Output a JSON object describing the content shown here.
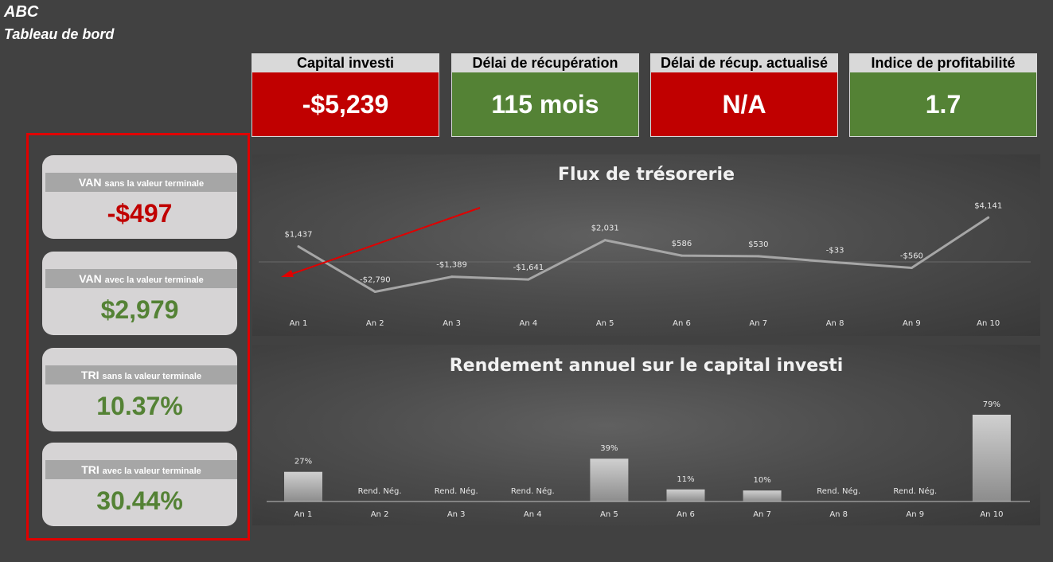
{
  "header": {
    "title": "ABC",
    "subtitle": "Tableau de bord"
  },
  "kpis": [
    {
      "label": "Capital investi",
      "value": "-$5,239",
      "color": "#c00000"
    },
    {
      "label": "Délai de récupération",
      "value": "115 mois",
      "color": "#548235"
    },
    {
      "label": "Délai de récup. actualisé",
      "value": "N/A",
      "color": "#c00000"
    },
    {
      "label": "Indice de profitabilité",
      "value": "1.7",
      "color": "#548235"
    }
  ],
  "metrics": [
    {
      "main": "VAN",
      "small": "sans la valeur terminale",
      "value": "-$497",
      "color": "#c00000"
    },
    {
      "main": "VAN",
      "small": "avec la valeur terminale",
      "value": "$2,979",
      "color": "#548235"
    },
    {
      "main": "TRI",
      "small": "sans la valeur terminale",
      "value": "10.37%",
      "color": "#548235"
    },
    {
      "main": "TRI",
      "small": "avec la valeur terminale",
      "value": "30.44%",
      "color": "#548235"
    }
  ],
  "chart_data": [
    {
      "type": "line",
      "title": "Flux de trésorerie",
      "categories": [
        "An 1",
        "An 2",
        "An 3",
        "An 4",
        "An 5",
        "An 6",
        "An 7",
        "An 8",
        "An 9",
        "An 10"
      ],
      "values": [
        1437,
        -2790,
        -1389,
        -1641,
        2031,
        586,
        530,
        -33,
        -560,
        4141
      ],
      "labels": [
        "$1,437",
        "-$2,790",
        "-$1,389",
        "-$1,641",
        "$2,031",
        "$586",
        "$530",
        "-$33",
        "-$560",
        "$4,141"
      ]
    },
    {
      "type": "bar",
      "title": "Rendement annuel sur le capital investi",
      "categories": [
        "An 1",
        "An 2",
        "An 3",
        "An 4",
        "An 5",
        "An 6",
        "An 7",
        "An 8",
        "An 9",
        "An 10"
      ],
      "values": [
        27,
        null,
        null,
        null,
        39,
        11,
        10,
        null,
        null,
        79
      ],
      "labels": [
        "27%",
        "Rend. Nég.",
        "Rend. Nég.",
        "Rend. Nég.",
        "39%",
        "11%",
        "10%",
        "Rend. Nég.",
        "Rend. Nég.",
        "79%"
      ]
    }
  ],
  "colors": {
    "line": "#a6a6a6",
    "bar": "#b0b0b0",
    "annotation_arrow": "#e00000"
  }
}
